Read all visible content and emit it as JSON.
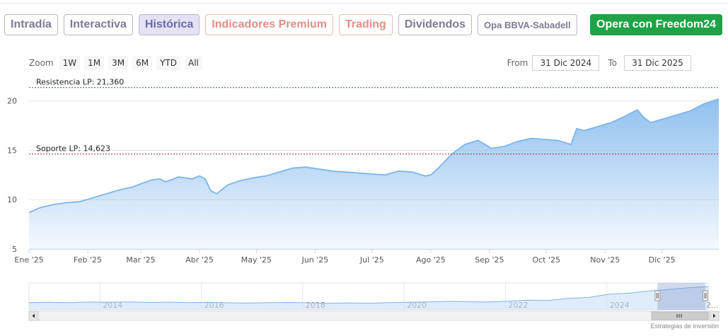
{
  "tabs": [
    {
      "label": "Intradía",
      "style": "normal"
    },
    {
      "label": "Interactiva",
      "style": "normal"
    },
    {
      "label": "Histórica",
      "style": "active"
    },
    {
      "label": "Indicadores Premium",
      "style": "premium"
    },
    {
      "label": "Trading",
      "style": "premium"
    },
    {
      "label": "Dividendos",
      "style": "normal"
    },
    {
      "label": "Opa BBVA-Sabadell",
      "style": "small"
    },
    {
      "label": "Opera con Freedom24",
      "style": "cta"
    }
  ],
  "zoom": {
    "label": "Zoom",
    "buttons": [
      "1W",
      "1M",
      "3M",
      "6M",
      "YTD",
      "All"
    ]
  },
  "range": {
    "from_label": "From",
    "from_value": "31 Dic 2024",
    "to_label": "To",
    "to_value": "31 Dic 2025"
  },
  "credit": "Estrategias de Inversión",
  "colors": {
    "line": "#7cb5ec",
    "area_top": "#7cb5ec",
    "resistance": "#2f6e3a",
    "support": "#a0283a",
    "cta": "#1fa346"
  },
  "chart_data": {
    "type": "area",
    "title": "",
    "xlabel": "",
    "ylabel": "",
    "ylim": [
      5,
      22.2
    ],
    "yticks": [
      5,
      10,
      15,
      20
    ],
    "x_tick_labels": [
      "Ene '25",
      "Feb '25",
      "Mar '25",
      "Abr '25",
      "May '25",
      "Jun '25",
      "Jul '25",
      "Ago '25",
      "Sep '25",
      "Oct '25",
      "Nov '25",
      "Dic '25"
    ],
    "x_start": "2025-01-01",
    "x_end": "2025-12-31",
    "series": [
      {
        "name": "",
        "x": [
          "2025-01-01",
          "2025-01-07",
          "2025-01-14",
          "2025-01-21",
          "2025-01-28",
          "2025-02-04",
          "2025-02-11",
          "2025-02-18",
          "2025-02-25",
          "2025-03-01",
          "2025-03-07",
          "2025-03-11",
          "2025-03-14",
          "2025-03-21",
          "2025-03-28",
          "2025-04-01",
          "2025-04-04",
          "2025-04-07",
          "2025-04-10",
          "2025-04-16",
          "2025-04-22",
          "2025-04-29",
          "2025-05-06",
          "2025-05-13",
          "2025-05-20",
          "2025-05-27",
          "2025-06-03",
          "2025-06-10",
          "2025-06-17",
          "2025-06-24",
          "2025-07-01",
          "2025-07-08",
          "2025-07-15",
          "2025-07-22",
          "2025-07-29",
          "2025-08-01",
          "2025-08-05",
          "2025-08-12",
          "2025-08-19",
          "2025-08-26",
          "2025-09-02",
          "2025-09-09",
          "2025-09-16",
          "2025-09-23",
          "2025-09-30",
          "2025-10-07",
          "2025-10-14",
          "2025-10-17",
          "2025-10-21",
          "2025-10-28",
          "2025-11-04",
          "2025-11-11",
          "2025-11-18",
          "2025-11-21",
          "2025-11-25",
          "2025-12-02",
          "2025-12-09",
          "2025-12-16",
          "2025-12-23",
          "2025-12-31"
        ],
        "values": [
          8.7,
          9.2,
          9.5,
          9.7,
          9.8,
          10.2,
          10.6,
          11.0,
          11.3,
          11.6,
          12.0,
          12.1,
          11.8,
          12.3,
          12.1,
          12.4,
          12.1,
          10.9,
          10.6,
          11.5,
          11.9,
          12.2,
          12.4,
          12.8,
          13.2,
          13.3,
          13.1,
          12.9,
          12.8,
          12.7,
          12.6,
          12.5,
          12.9,
          12.8,
          12.4,
          12.5,
          13.2,
          14.6,
          15.6,
          16.0,
          15.2,
          15.4,
          15.9,
          16.2,
          16.1,
          16.0,
          15.6,
          17.2,
          17.0,
          17.4,
          17.8,
          18.4,
          19.1,
          18.4,
          17.8,
          18.2,
          18.6,
          19.0,
          19.7,
          20.2
        ]
      }
    ],
    "annotations": [
      {
        "label": "Resistencia LP: 21,360",
        "value": 21.36
      },
      {
        "label": "Soporte LP: 14,623",
        "value": 14.623
      }
    ],
    "navigator": {
      "year_labels": [
        "2014",
        "2016",
        "2018",
        "2020",
        "2022",
        "2024",
        "2..."
      ],
      "history": [
        8.4,
        8.6,
        8.3,
        8.8,
        8.6,
        8.9,
        8.5,
        8.7,
        8.4,
        8.6,
        8.2,
        8.0,
        8.3,
        8.5,
        8.2,
        7.8,
        8.1,
        7.9,
        8.3,
        8.6,
        8.9,
        9.3,
        9.0,
        8.8,
        9.4,
        10.2,
        10.0,
        11.5,
        12.2,
        14.6,
        15.4,
        17.0,
        18.2,
        19.5,
        20.2
      ],
      "history_start_year": 2012.6,
      "history_end_year": 2026.0,
      "selection": [
        2025.0,
        2026.0
      ]
    },
    "grid": true,
    "legend": "none"
  }
}
